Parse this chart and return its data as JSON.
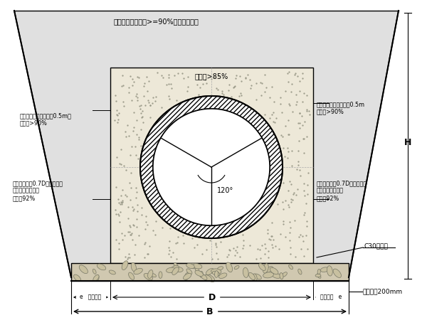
{
  "title_text": "一般填区：密实度>=90%对同路基要求",
  "sand_density_label": "密实度>85%",
  "left_top_label": "夯实填区：至管顶以上0.5m，\n密实度>90%",
  "right_top_label": "夯实填区：至管顶以上0.5m\n密实度>90%",
  "left_mid_label": "主回填区：至0.7D，满足回填\n要求的原上回填，\n密实度92%",
  "right_mid_label": "主回填区：至0.7D，满足回填\n要求的原上回填，\n密实度92%",
  "angle_label": "120°",
  "c30_label": "C30混凝土",
  "gravel_label": "砾砂垫层200mm",
  "B_label": "B",
  "D_label": "D",
  "e_label_left": "e   砾砂层厚",
  "e_label_right": "砾砂厚度   e",
  "H_label": "H",
  "white": "#ffffff",
  "black": "#000000",
  "trench_fill_color": "#e0e0e0",
  "sand_fill_color": "#ede8d8",
  "gravel_color": "#d0c8b0"
}
